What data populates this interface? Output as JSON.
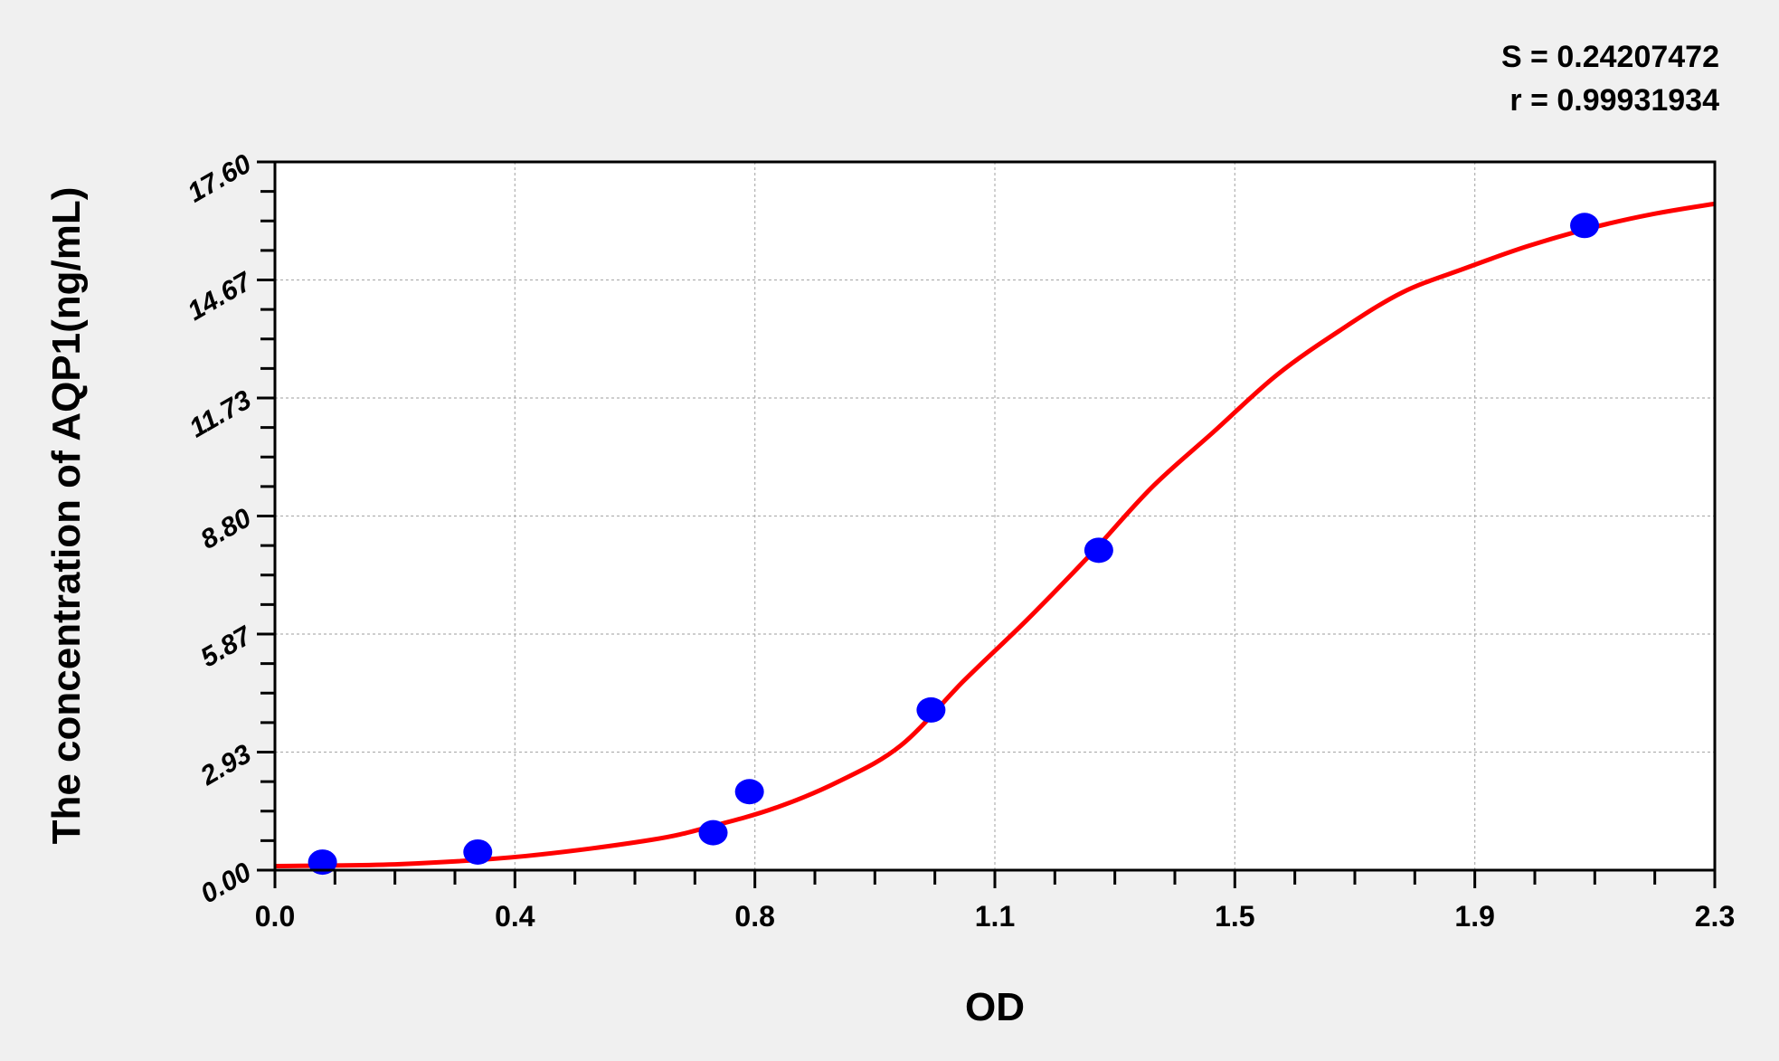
{
  "chart_data": {
    "type": "scatter",
    "xlabel": "OD",
    "ylabel": "The concentration of AQP1(ng/mL)",
    "xlim": [
      0,
      2.3
    ],
    "ylim": [
      0,
      17.6
    ],
    "x_tick_labels": [
      "0.0",
      "0.4",
      "0.8",
      "1.1",
      "1.5",
      "1.9",
      "2.3"
    ],
    "y_tick_labels": [
      "0.00",
      "2.93",
      "5.87",
      "8.80",
      "11.73",
      "14.67",
      "17.60"
    ],
    "grid": true,
    "annotations": [
      "S = 0.24207472",
      "r = 0.99931934"
    ],
    "series": [
      {
        "kind": "points",
        "color": "#0000ff",
        "x": [
          0.076,
          0.324,
          0.7,
          0.758,
          1.048,
          1.316,
          2.092
        ],
        "y": [
          0.2,
          0.45,
          0.93,
          1.95,
          3.98,
          7.95,
          16.02
        ]
      },
      {
        "kind": "fit-curve",
        "color": "#ff0000",
        "x": [
          0,
          0.2,
          0.4,
          0.6,
          0.7,
          0.8,
          0.9,
          1.0,
          1.1,
          1.2,
          1.3,
          1.4,
          1.5,
          1.6,
          1.7,
          1.8,
          1.9,
          2.0,
          2.1,
          2.2,
          2.3
        ],
        "y": [
          0.1,
          0.15,
          0.35,
          0.75,
          1.1,
          1.55,
          2.2,
          3.1,
          4.7,
          6.2,
          7.8,
          9.5,
          10.9,
          12.3,
          13.4,
          14.35,
          14.95,
          15.5,
          15.95,
          16.3,
          16.56
        ]
      }
    ]
  }
}
